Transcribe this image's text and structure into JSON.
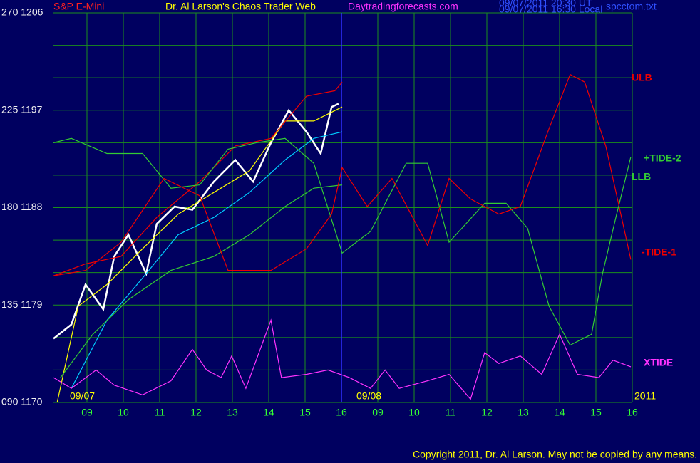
{
  "chart_data": {
    "type": "line",
    "title_left": "S&P E-Mini",
    "title": "Dr. Al Larson's Chaos Trader Web",
    "site": "Daytradingforecasts.com",
    "timestamps": [
      "09/07/2011 20:30 UT",
      "09/07/2011 16:30 Local"
    ],
    "filename": "spcctom.txt",
    "date_labels": [
      "09/07",
      "09/08"
    ],
    "year": "2011",
    "copyright": "Copyright 2011, Dr. Al Larson. May not be copied by any means.",
    "xlim": [
      0,
      16
    ],
    "ylim": [
      1170,
      1206
    ],
    "grid": true,
    "grid_color": "#1b8f1b",
    "xticks": [
      {
        "value": 1,
        "label": "09"
      },
      {
        "value": 2,
        "label": "10"
      },
      {
        "value": 3,
        "label": "11"
      },
      {
        "value": 4,
        "label": "12"
      },
      {
        "value": 5,
        "label": "13"
      },
      {
        "value": 6,
        "label": "14"
      },
      {
        "value": 7,
        "label": "15"
      },
      {
        "value": 8,
        "label": "16"
      },
      {
        "value": 9,
        "label": "09"
      },
      {
        "value": 10,
        "label": "10"
      },
      {
        "value": 11,
        "label": "11"
      },
      {
        "value": 12,
        "label": "12"
      },
      {
        "value": 13,
        "label": "13"
      },
      {
        "value": 14,
        "label": "14"
      },
      {
        "value": 15,
        "label": "15"
      },
      {
        "value": 16,
        "label": "16"
      }
    ],
    "yticks": [
      {
        "value": 1206,
        "label": "270 1206"
      },
      {
        "value": 1197,
        "label": "225 1197"
      },
      {
        "value": 1188,
        "label": "180 1188"
      },
      {
        "value": 1179,
        "label": "135 1179"
      },
      {
        "value": 1170,
        "label": "090 1170"
      }
    ],
    "ygrid": [
      1170,
      1173,
      1176,
      1179,
      1182,
      1185,
      1188,
      1191,
      1194,
      1197,
      1200,
      1203,
      1206
    ],
    "series": [
      {
        "color": "#ffffff",
        "x": [
          0.08,
          0.57,
          0.96,
          1.45,
          1.75,
          2.14,
          2.63,
          2.92,
          3.41,
          3.9,
          4.49,
          5.08,
          5.57,
          6.06,
          6.55,
          7.04,
          7.43,
          7.73,
          7.92
        ],
        "values": [
          1175.9,
          1177.2,
          1180.9,
          1178.6,
          1183.5,
          1185.5,
          1181.9,
          1186.5,
          1188.1,
          1187.8,
          1190.4,
          1192.4,
          1190.4,
          1194.0,
          1197.0,
          1195.0,
          1193.0,
          1197.3,
          1197.6
        ]
      },
      {
        "color": "#00ccff",
        "x": [
          0.57,
          1.55,
          2.53,
          3.51,
          4.49,
          5.47,
          6.45,
          7.24,
          8.02
        ],
        "values": [
          1171.3,
          1177.6,
          1181.5,
          1185.5,
          1187.1,
          1189.4,
          1192.4,
          1194.4,
          1195.0
        ]
      },
      {
        "color": "#ffff00",
        "x": [
          0.18,
          0.76,
          1.55,
          2.53,
          3.51,
          4.49,
          5.47,
          6.45,
          7.24,
          8.02
        ],
        "values": [
          1170.0,
          1178.9,
          1180.9,
          1184.2,
          1187.4,
          1189.4,
          1191.4,
          1196.0,
          1196.0,
          1197.3
        ]
      },
      {
        "name": "ULB",
        "color": "#ee0000",
        "x": [
          0.08,
          0.96,
          1.94,
          2.92,
          4.1,
          5.08,
          6.06,
          7.04,
          7.82,
          8.02
        ],
        "values": [
          1181.7,
          1182.8,
          1183.5,
          1187.1,
          1190.4,
          1193.7,
          1194.4,
          1198.3,
          1198.8,
          1199.6
        ]
      },
      {
        "name": "LLB",
        "color": "#33cc33",
        "x": [
          0.27,
          1.16,
          2.14,
          3.31,
          4.49,
          5.47,
          6.45,
          7.24,
          8.02
        ],
        "values": [
          1172.3,
          1176.3,
          1179.5,
          1182.2,
          1183.5,
          1185.5,
          1188.1,
          1189.8,
          1190.1
        ]
      },
      {
        "name": "+TIDE-2",
        "color": "#33cc33",
        "x": [
          0.08,
          0.57,
          1.55,
          2.53,
          3.31,
          4.1,
          4.88,
          5.67,
          6.45,
          7.24,
          8.02,
          8.8,
          9.78,
          10.37,
          10.96,
          11.94,
          12.53,
          13.12,
          13.71,
          14.29,
          14.88,
          15.18,
          15.57,
          15.96
        ],
        "values": [
          1194.0,
          1194.4,
          1193.0,
          1193.0,
          1189.8,
          1190.1,
          1193.4,
          1194.0,
          1194.4,
          1192.1,
          1183.8,
          1185.8,
          1192.1,
          1192.1,
          1184.8,
          1188.4,
          1188.4,
          1186.1,
          1178.9,
          1175.3,
          1176.3,
          1181.9,
          1187.4,
          1192.7
        ]
      },
      {
        "name": "-TIDE-1",
        "color": "#ee0000",
        "x": [
          0.08,
          0.96,
          1.94,
          3.12,
          4.1,
          4.88,
          6.06,
          7.04,
          7.73,
          8.02,
          8.71,
          9.39,
          10.37,
          10.96,
          11.55,
          12.33,
          12.92,
          13.71,
          14.29,
          14.69,
          15.27,
          15.96
        ],
        "values": [
          1181.7,
          1182.2,
          1184.8,
          1190.7,
          1189.1,
          1182.2,
          1182.2,
          1184.2,
          1187.4,
          1191.7,
          1188.1,
          1190.7,
          1184.5,
          1190.7,
          1188.8,
          1187.4,
          1188.1,
          1195.3,
          1200.3,
          1199.6,
          1193.7,
          1183.2
        ]
      },
      {
        "name": "XTIDE",
        "color": "#ff33ff",
        "x": [
          0.08,
          0.57,
          1.25,
          1.75,
          2.53,
          3.31,
          3.9,
          4.29,
          4.69,
          4.98,
          5.37,
          6.06,
          6.35,
          7.04,
          7.63,
          8.22,
          8.8,
          9.2,
          9.59,
          10.37,
          10.96,
          11.55,
          11.94,
          12.33,
          12.92,
          13.51,
          14.0,
          14.49,
          15.08,
          15.47,
          15.96
        ],
        "values": [
          1172.3,
          1171.3,
          1173.0,
          1171.6,
          1170.7,
          1172.0,
          1174.9,
          1173.0,
          1172.3,
          1174.3,
          1171.3,
          1177.6,
          1172.3,
          1172.6,
          1173.0,
          1172.3,
          1171.3,
          1173.0,
          1171.3,
          1172.0,
          1172.6,
          1170.3,
          1174.6,
          1173.6,
          1174.3,
          1172.6,
          1176.3,
          1172.6,
          1172.3,
          1173.9,
          1173.3
        ]
      }
    ]
  }
}
